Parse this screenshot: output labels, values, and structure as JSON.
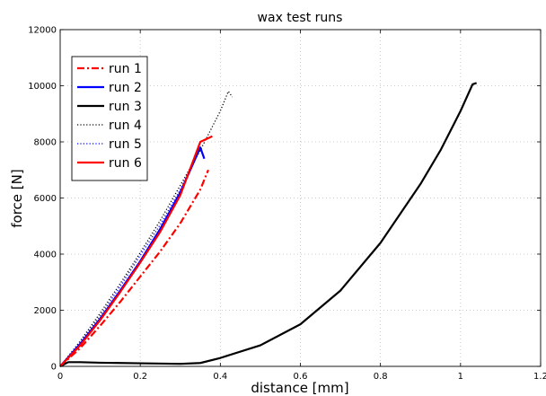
{
  "chart_data": {
    "type": "line",
    "title": "wax test runs",
    "xlabel": "distance [mm]",
    "ylabel": "force [N]",
    "xlim": [
      0,
      1.2
    ],
    "ylim": [
      0,
      12000
    ],
    "xticks": [
      "0",
      "0.2",
      "0.4",
      "0.6",
      "0.8",
      "1",
      "1.2"
    ],
    "yticks": [
      "0",
      "2000",
      "4000",
      "6000",
      "8000",
      "10000",
      "12000"
    ],
    "grid": true,
    "legend_position": "top-left",
    "series": [
      {
        "name": "run 1",
        "color": "#ff0000",
        "style": "dashdot",
        "x": [
          0,
          0.05,
          0.1,
          0.15,
          0.2,
          0.25,
          0.3,
          0.35,
          0.37
        ],
        "y": [
          0,
          650,
          1450,
          2300,
          3200,
          4100,
          5100,
          6300,
          7000
        ]
      },
      {
        "name": "run 2",
        "color": "#0000ff",
        "style": "solid",
        "x": [
          0,
          0.05,
          0.1,
          0.15,
          0.2,
          0.25,
          0.3,
          0.35,
          0.36
        ],
        "y": [
          0,
          800,
          1700,
          2700,
          3750,
          4900,
          6200,
          7800,
          7400
        ]
      },
      {
        "name": "run 3",
        "color": "#000000",
        "style": "solid",
        "x": [
          0,
          0.02,
          0.05,
          0.1,
          0.2,
          0.3,
          0.35,
          0.4,
          0.5,
          0.6,
          0.7,
          0.8,
          0.9,
          0.95,
          1.0,
          1.03,
          1.04
        ],
        "y": [
          0,
          150,
          150,
          130,
          110,
          90,
          120,
          300,
          750,
          1500,
          2700,
          4400,
          6500,
          7700,
          9100,
          10050,
          10100
        ]
      },
      {
        "name": "run 4",
        "color": "#000000",
        "style": "dotted",
        "x": [
          0,
          0.05,
          0.1,
          0.15,
          0.2,
          0.25,
          0.3,
          0.35,
          0.4,
          0.42,
          0.43
        ],
        "y": [
          0,
          900,
          1900,
          2950,
          4050,
          5200,
          6450,
          7700,
          9100,
          9800,
          9600
        ]
      },
      {
        "name": "run 5",
        "color": "#0000ff",
        "style": "dotted",
        "x": [
          0,
          0.05,
          0.1,
          0.15,
          0.2,
          0.25,
          0.3,
          0.35
        ],
        "y": [
          0,
          850,
          1800,
          2850,
          3950,
          5050,
          6300,
          7800
        ]
      },
      {
        "name": "run 6",
        "color": "#ff0000",
        "style": "solid",
        "x": [
          0,
          0.05,
          0.1,
          0.15,
          0.2,
          0.25,
          0.3,
          0.35,
          0.38
        ],
        "y": [
          0,
          750,
          1650,
          2650,
          3700,
          4800,
          6100,
          8000,
          8200
        ]
      }
    ]
  }
}
